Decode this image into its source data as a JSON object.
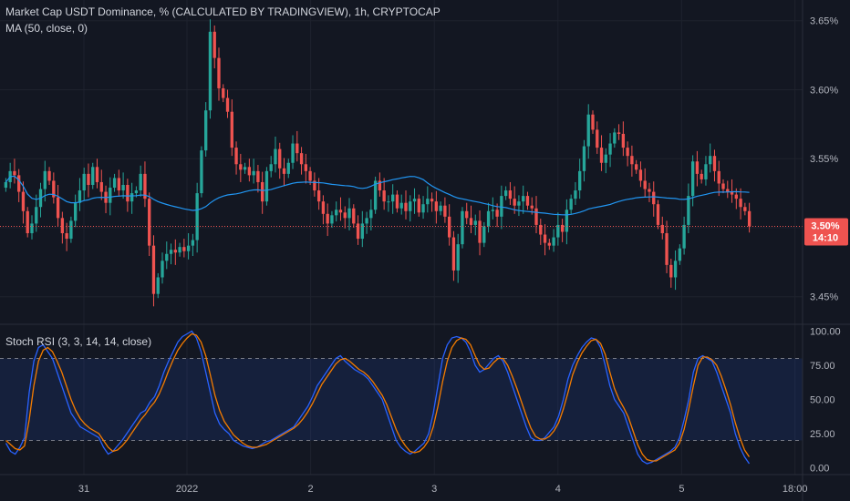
{
  "chart_data": [
    {
      "type": "candlestick",
      "title": "Market Cap USDT Dominance, % (CALCULATED BY TRADINGVIEW), 1h, CRYPTOCAP",
      "indicator": "MA (50, close, 0)",
      "ylim": [
        3.43,
        3.665
      ],
      "y_ticks": [
        "3.65%",
        "3.60%",
        "3.55%",
        "3.50%",
        "3.45%"
      ],
      "y_tick_values": [
        3.65,
        3.6,
        3.55,
        3.5,
        3.45
      ],
      "last_price": "3.50%",
      "countdown": "14:10",
      "candles_close": [
        3.533,
        3.541,
        3.538,
        3.526,
        3.512,
        3.496,
        3.503,
        3.515,
        3.528,
        3.541,
        3.534,
        3.522,
        3.507,
        3.496,
        3.492,
        3.505,
        3.518,
        3.527,
        3.539,
        3.531,
        3.544,
        3.533,
        3.526,
        3.518,
        3.529,
        3.536,
        3.527,
        3.531,
        3.519,
        3.525,
        3.527,
        3.539,
        3.521,
        3.487,
        3.452,
        3.464,
        3.476,
        3.481,
        3.484,
        3.482,
        3.486,
        3.483,
        3.487,
        3.491,
        3.525,
        3.556,
        3.585,
        3.642,
        3.623,
        3.601,
        3.594,
        3.584,
        3.558,
        3.546,
        3.542,
        3.544,
        3.538,
        3.541,
        3.533,
        3.519,
        3.541,
        3.546,
        3.557,
        3.543,
        3.539,
        3.547,
        3.561,
        3.554,
        3.546,
        3.541,
        3.534,
        3.527,
        3.519,
        3.51,
        3.503,
        3.509,
        3.513,
        3.511,
        3.507,
        3.514,
        3.503,
        3.492,
        3.503,
        3.507,
        3.513,
        3.534,
        3.527,
        3.519,
        3.519,
        3.524,
        3.514,
        3.518,
        3.512,
        3.519,
        3.521,
        3.511,
        3.517,
        3.521,
        3.519,
        3.512,
        3.516,
        3.508,
        3.493,
        3.469,
        3.488,
        3.512,
        3.507,
        3.502,
        3.505,
        3.489,
        3.501,
        3.512,
        3.513,
        3.508,
        3.523,
        3.527,
        3.521,
        3.516,
        3.519,
        3.523,
        3.516,
        3.514,
        3.502,
        3.495,
        3.489,
        3.487,
        3.493,
        3.502,
        3.497,
        3.513,
        3.521,
        3.527,
        3.541,
        3.559,
        3.582,
        3.571,
        3.558,
        3.547,
        3.553,
        3.561,
        3.569,
        3.568,
        3.558,
        3.552,
        3.546,
        3.542,
        3.534,
        3.528,
        3.526,
        3.517,
        3.502,
        3.496,
        3.473,
        3.464,
        3.476,
        3.485,
        3.502,
        3.523,
        3.548,
        3.539,
        3.535,
        3.546,
        3.552,
        3.541,
        3.532,
        3.528,
        3.526,
        3.524,
        3.521,
        3.515,
        3.512,
        3.501
      ],
      "ma_period": 50
    },
    {
      "type": "line",
      "title": "Stoch RSI (3, 3, 14, 14, close)",
      "ylim": [
        -5,
        105
      ],
      "y_ticks": [
        "100.00",
        "75.00",
        "50.00",
        "25.00",
        "0.00"
      ],
      "y_tick_values": [
        100,
        75,
        50,
        25,
        0
      ],
      "band": [
        20,
        80
      ],
      "series": [
        {
          "color": "#2962ff",
          "values": [
            18,
            12,
            10,
            15,
            22,
            55,
            78,
            88,
            90,
            85,
            80,
            70,
            60,
            50,
            40,
            35,
            30,
            28,
            26,
            24,
            22,
            15,
            10,
            12,
            16,
            20,
            25,
            30,
            35,
            40,
            42,
            48,
            52,
            60,
            70,
            78,
            85,
            92,
            96,
            98,
            100,
            95,
            85,
            70,
            55,
            40,
            32,
            28,
            25,
            20,
            18,
            16,
            15,
            14,
            15,
            17,
            19,
            20,
            22,
            24,
            26,
            28,
            30,
            35,
            40,
            45,
            52,
            60,
            65,
            70,
            75,
            80,
            82,
            78,
            75,
            72,
            70,
            68,
            65,
            60,
            55,
            50,
            40,
            30,
            20,
            15,
            12,
            10,
            12,
            15,
            18,
            25,
            40,
            60,
            80,
            90,
            95,
            96,
            95,
            92,
            85,
            75,
            70,
            72,
            76,
            80,
            82,
            78,
            70,
            60,
            50,
            40,
            30,
            22,
            20,
            20,
            22,
            26,
            30,
            38,
            50,
            65,
            75,
            82,
            88,
            92,
            95,
            94,
            88,
            75,
            60,
            50,
            45,
            40,
            30,
            20,
            10,
            5,
            3,
            4,
            6,
            8,
            10,
            12,
            15,
            22,
            35,
            50,
            70,
            80,
            82,
            80,
            78,
            70,
            60,
            50,
            40,
            25,
            15,
            8,
            3
          ]
        },
        {
          "color": "#f57c00",
          "values": [
            20,
            17,
            14,
            13,
            16,
            35,
            60,
            78,
            86,
            88,
            85,
            78,
            70,
            60,
            50,
            42,
            36,
            32,
            29,
            27,
            25,
            20,
            15,
            12,
            13,
            16,
            20,
            25,
            30,
            35,
            39,
            44,
            48,
            54,
            62,
            71,
            79,
            86,
            91,
            95,
            98,
            97,
            92,
            82,
            68,
            53,
            42,
            34,
            29,
            24,
            21,
            18,
            16,
            15,
            15,
            16,
            17,
            19,
            21,
            23,
            25,
            27,
            29,
            32,
            36,
            41,
            47,
            54,
            61,
            66,
            71,
            76,
            79,
            80,
            78,
            75,
            72,
            70,
            67,
            63,
            58,
            53,
            46,
            37,
            28,
            21,
            16,
            12,
            11,
            12,
            15,
            20,
            30,
            45,
            63,
            78,
            88,
            93,
            95,
            94,
            90,
            82,
            75,
            72,
            73,
            77,
            80,
            80,
            75,
            67,
            58,
            48,
            38,
            29,
            23,
            21,
            21,
            23,
            27,
            33,
            43,
            55,
            68,
            77,
            84,
            89,
            93,
            94,
            91,
            83,
            70,
            58,
            50,
            44,
            37,
            27,
            17,
            10,
            6,
            5,
            5,
            7,
            9,
            11,
            13,
            18,
            28,
            43,
            60,
            75,
            81,
            81,
            79,
            75,
            67,
            57,
            46,
            33,
            22,
            13,
            8
          ]
        }
      ]
    }
  ],
  "x_axis": {
    "labels": [
      "31",
      "2022",
      "2",
      "3",
      "4",
      "5",
      "18:00"
    ],
    "label_positions_hours": [
      10,
      30,
      54,
      78,
      102,
      126,
      148
    ]
  },
  "colors": {
    "background": "#131722",
    "grid": "#1e222d",
    "up": "#26a69a",
    "down": "#ef5350",
    "ma": "#2196f3",
    "band_fill": "#2962ff",
    "last_price_tag": "#ef5350"
  }
}
